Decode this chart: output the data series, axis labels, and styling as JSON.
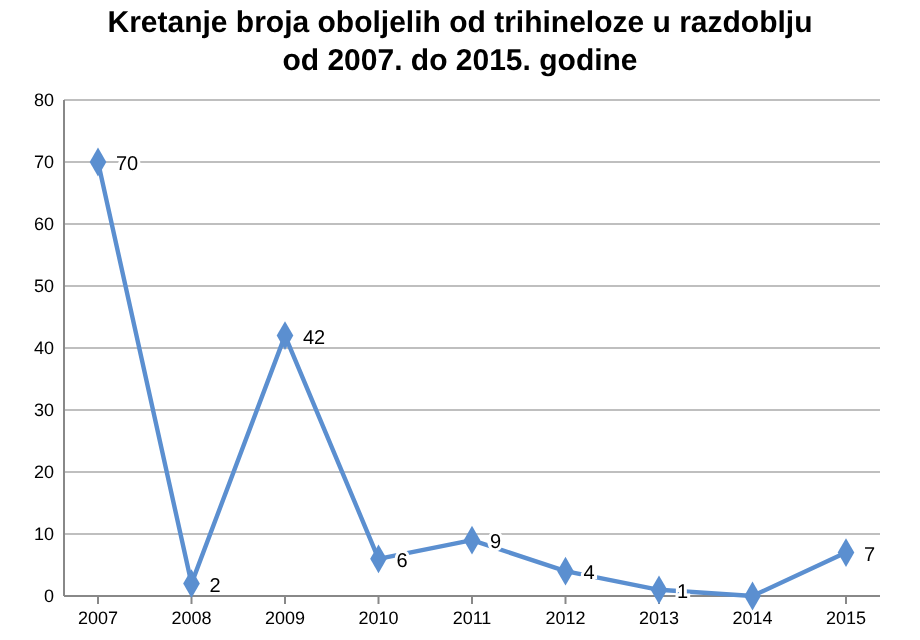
{
  "chart_data": {
    "type": "line",
    "title": "Kretanje broja oboljelih od trihineloze u razdoblju\nod 2007. do 2015. godine",
    "categories": [
      "2007",
      "2008",
      "2009",
      "2010",
      "2011",
      "2012",
      "2013",
      "2014",
      "2015"
    ],
    "series": [
      {
        "color": "#5b8fd0",
        "values": [
          70,
          2,
          42,
          6,
          9,
          4,
          1,
          0,
          7
        ],
        "value_labels": [
          "70",
          "2",
          "42",
          "6",
          "9",
          "4",
          "1",
          null,
          "7"
        ]
      }
    ],
    "ylim": [
      0,
      80
    ],
    "yticks": [
      0,
      10,
      20,
      30,
      40,
      50,
      60,
      70,
      80
    ],
    "grid": "y",
    "marker": "diamond"
  }
}
